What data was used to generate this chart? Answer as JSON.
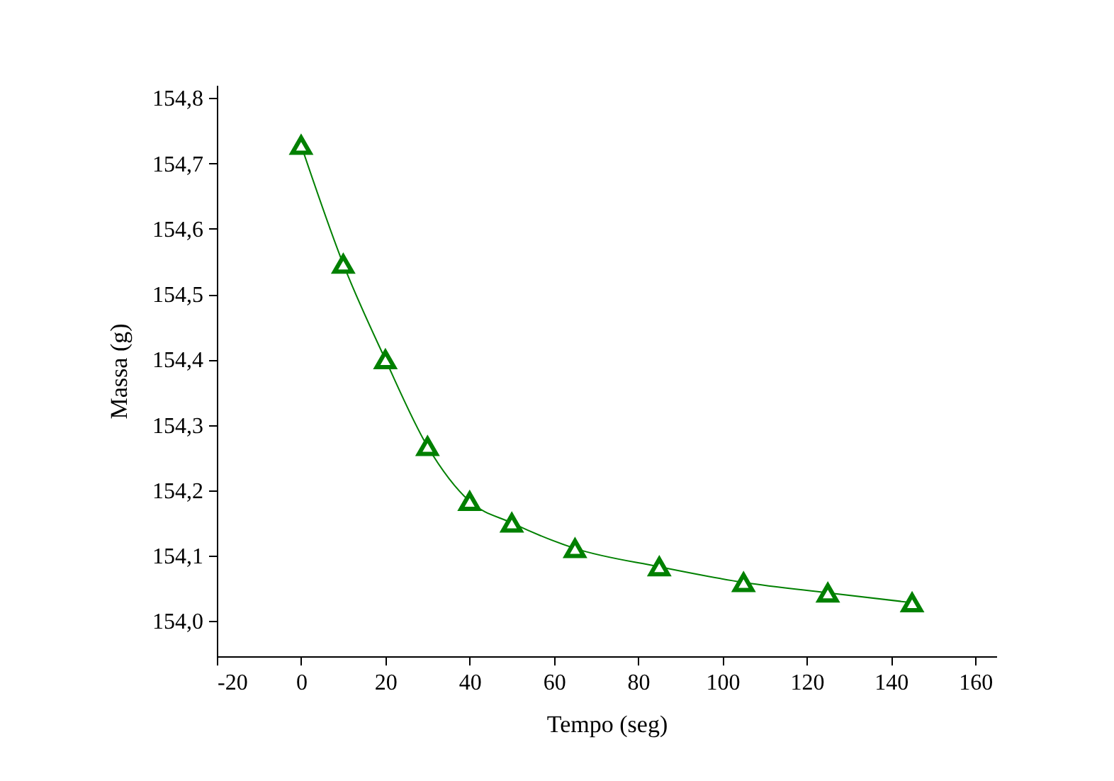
{
  "chart_data": {
    "type": "line",
    "xlabel": "Tempo (seg)",
    "ylabel": "Massa (g)",
    "x": [
      0,
      10,
      20,
      30,
      40,
      50,
      65,
      85,
      105,
      125,
      145
    ],
    "series": [
      {
        "color": "#008000",
        "values": [
          154.728,
          154.546,
          154.4,
          154.267,
          154.183,
          154.15,
          154.111,
          154.083,
          154.059,
          154.043,
          154.028
        ]
      }
    ],
    "xlim": [
      -20,
      165
    ],
    "xticks": [
      -20,
      0,
      20,
      40,
      60,
      80,
      100,
      120,
      140,
      160
    ],
    "ylim": [
      153.946,
      154.82
    ],
    "yticks": [
      {
        "value": 154.0,
        "label": "154,0"
      },
      {
        "value": 154.1,
        "label": "154,1"
      },
      {
        "value": 154.2,
        "label": "154,2"
      },
      {
        "value": 154.3,
        "label": "154,3"
      },
      {
        "value": 154.4,
        "label": "154,4"
      },
      {
        "value": 154.5,
        "label": "154,5"
      },
      {
        "value": 154.6,
        "label": "154,6"
      },
      {
        "value": 154.7,
        "label": "154,7"
      },
      {
        "value": 154.8,
        "label": "154,8"
      }
    ],
    "marker": "triangle",
    "line_style": "solid"
  }
}
